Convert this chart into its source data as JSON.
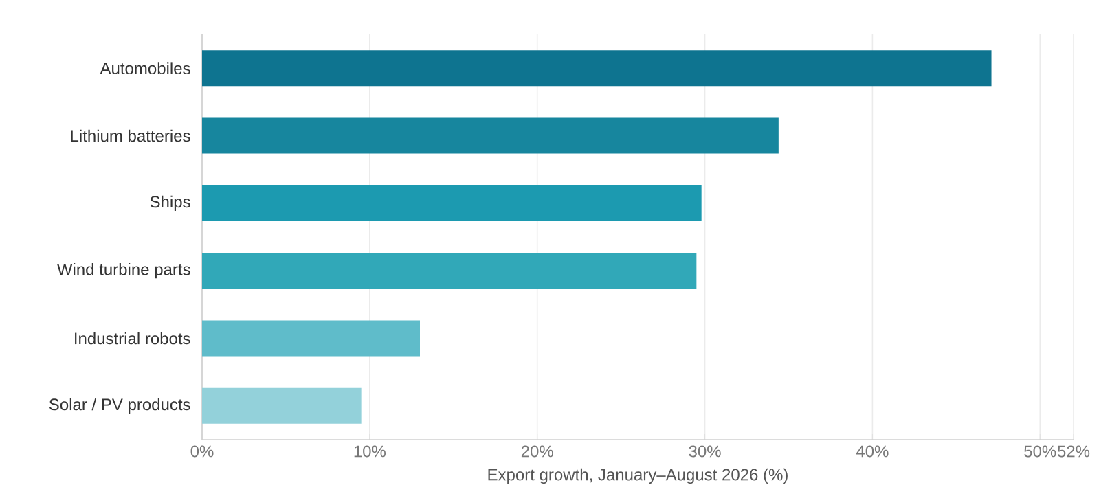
{
  "chart_data": {
    "type": "bar",
    "orientation": "horizontal",
    "categories": [
      "Automobiles",
      "Lithium batteries",
      "Ships",
      "Wind turbine parts",
      "Industrial robots",
      "Solar / PV products"
    ],
    "values": [
      47.1,
      34.4,
      29.8,
      29.5,
      13.0,
      9.5
    ],
    "colors": [
      "#0e7490",
      "#17869e",
      "#1c9ab0",
      "#31a8b8",
      "#5fbcca",
      "#93d1da"
    ],
    "xlabel": "Export growth, January–August 2026 (%)",
    "xlim": [
      0,
      52
    ],
    "xticks": [
      {
        "value": 0,
        "label": "0%"
      },
      {
        "value": 10,
        "label": "10%"
      },
      {
        "value": 20,
        "label": "20%"
      },
      {
        "value": 30,
        "label": "30%"
      },
      {
        "value": 40,
        "label": "40%"
      },
      {
        "value": 50,
        "label": "50%"
      },
      {
        "value": 52,
        "label": "52%"
      }
    ],
    "grid": "x"
  }
}
